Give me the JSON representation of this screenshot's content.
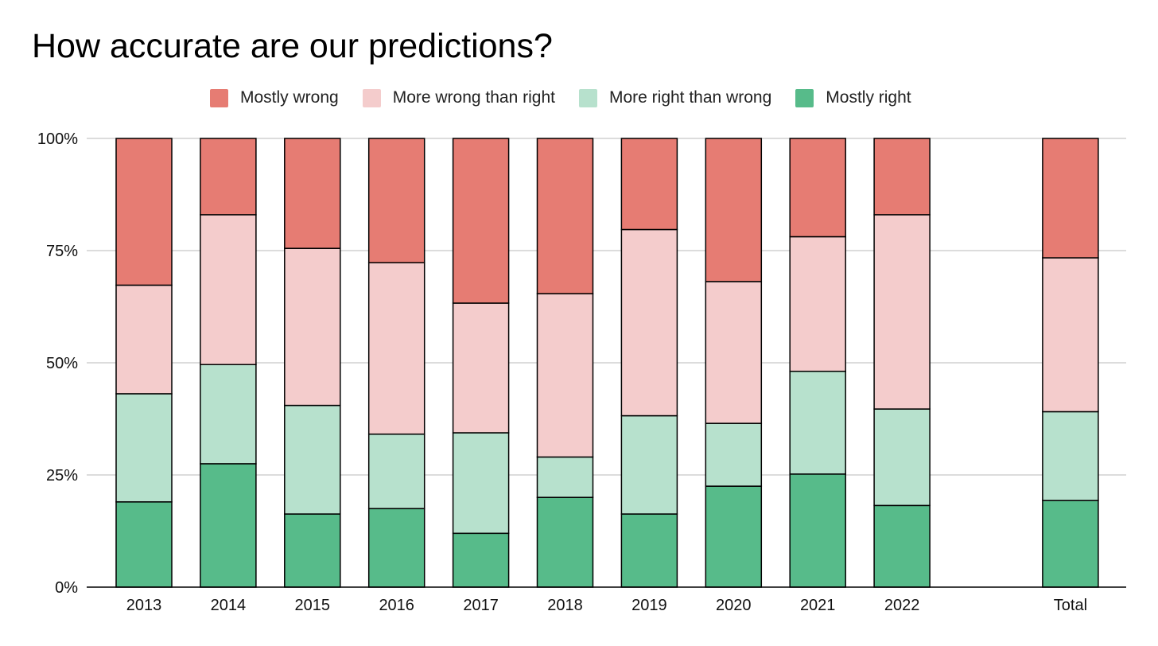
{
  "chart_data": {
    "type": "bar",
    "stacked": true,
    "title": "How accurate are our predictions?",
    "categories": [
      "2013",
      "2014",
      "2015",
      "2016",
      "2017",
      "2018",
      "2019",
      "2020",
      "2021",
      "2022",
      "",
      "Total"
    ],
    "series": [
      {
        "name": "Mostly right",
        "color": "#57bb8a",
        "values": [
          19.0,
          27.5,
          16.3,
          17.5,
          12.0,
          20.0,
          16.3,
          22.5,
          25.2,
          18.2,
          null,
          19.3
        ]
      },
      {
        "name": "More right than wrong",
        "color": "#b7e1cd",
        "values": [
          24.1,
          22.1,
          24.2,
          16.6,
          22.4,
          9.0,
          21.9,
          14.0,
          22.9,
          21.5,
          null,
          19.8
        ]
      },
      {
        "name": "More wrong than right",
        "color": "#f4cccc",
        "values": [
          24.2,
          33.4,
          35.0,
          38.2,
          28.9,
          36.4,
          41.5,
          31.6,
          30.0,
          43.3,
          null,
          34.3
        ]
      },
      {
        "name": "Mostly wrong",
        "color": "#e67c73",
        "values": [
          32.7,
          17.0,
          24.5,
          27.7,
          36.7,
          34.6,
          20.3,
          31.9,
          21.9,
          17.0,
          null,
          26.6
        ]
      }
    ],
    "legend_order": [
      "Mostly wrong",
      "More wrong than right",
      "More right than wrong",
      "Mostly right"
    ],
    "ylim": [
      0,
      100
    ],
    "yticks": [
      "0%",
      "25%",
      "50%",
      "75%",
      "100%"
    ],
    "ytick_values": [
      0,
      25,
      50,
      75,
      100
    ],
    "xlabel": "",
    "ylabel": "",
    "grid": true,
    "legend_position": "top"
  }
}
